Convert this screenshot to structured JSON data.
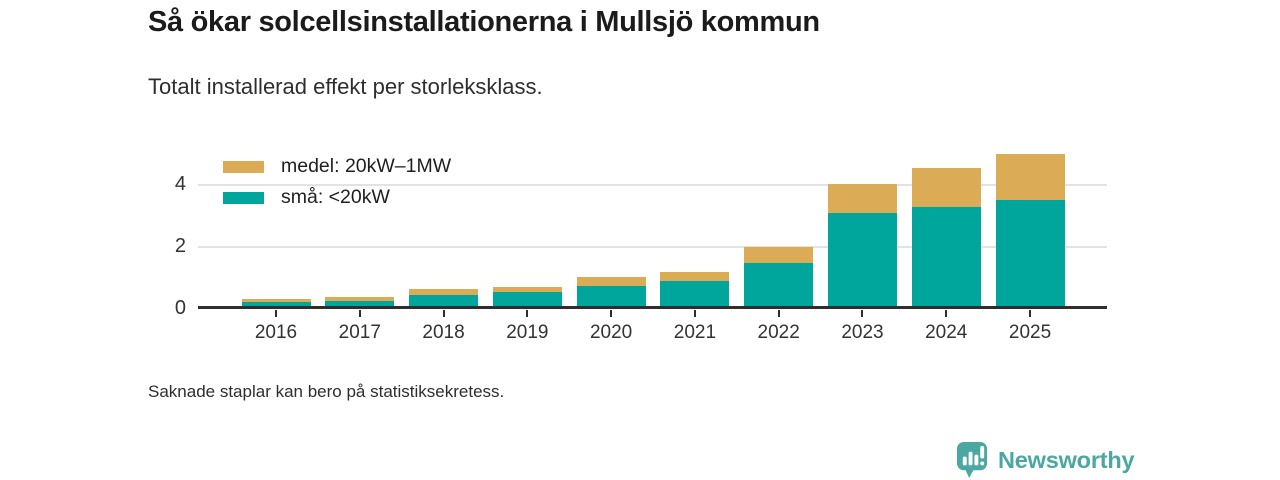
{
  "chart_data": {
    "type": "bar",
    "stacked": true,
    "title": "Så ökar solcellsinstallationerna i Mullsjö kommun",
    "subtitle": "Totalt installerad effekt per storleksklass.",
    "footnote": "Saknade staplar kan bero på statistiksekretess.",
    "categories": [
      "2016",
      "2017",
      "2018",
      "2019",
      "2020",
      "2021",
      "2022",
      "2023",
      "2024",
      "2025"
    ],
    "series": [
      {
        "name": "medel: 20kW–1MW",
        "color": "#dbab55",
        "stack_position": "top",
        "values": [
          0.1,
          0.11,
          0.17,
          0.18,
          0.29,
          0.28,
          0.5,
          0.97,
          1.27,
          1.5
        ]
      },
      {
        "name": "små: <20kW",
        "color": "#00a59b",
        "stack_position": "bottom",
        "values": [
          0.2,
          0.25,
          0.45,
          0.52,
          0.73,
          0.9,
          1.49,
          3.08,
          3.3,
          3.52
        ]
      }
    ],
    "totals": [
      0.3,
      0.36,
      0.62,
      0.7,
      1.02,
      1.18,
      1.99,
      4.05,
      4.57,
      5.02
    ],
    "xlabel": "",
    "ylabel": "",
    "yticks": [
      0,
      2,
      4
    ],
    "ylim": [
      0,
      5.5
    ],
    "grid": "horizontal-light",
    "legend_position": "top-left",
    "axis_color": "#2e2e2e",
    "gridline_color": "#e3e3e3",
    "tick_text_color": "#333333"
  },
  "branding": {
    "wordmark": "Newsworthy",
    "color": "#4ba7a1",
    "icon": "bar-chart-speech-bubble-icon"
  }
}
